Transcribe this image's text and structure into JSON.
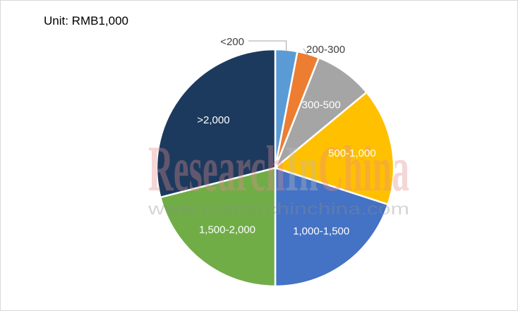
{
  "unit_label": "Unit: RMB1,000",
  "watermark": {
    "brand_parts": [
      "Research",
      "In",
      "China"
    ],
    "url": "www.researchinchina.com",
    "colors": [
      "#e38d8d",
      "#bdbdbd"
    ]
  },
  "chart_data": {
    "type": "pie",
    "start_angle_deg": 0,
    "direction": "clockwise",
    "slices": [
      {
        "label": "<200",
        "value": 3.0,
        "color": "#5b9bd5",
        "label_outside": true,
        "label_color": "#404040"
      },
      {
        "label": "200-300",
        "value": 3.0,
        "color": "#ed7d31",
        "label_outside": true,
        "label_color": "#404040"
      },
      {
        "label": "300-500",
        "value": 8.0,
        "color": "#a5a5a5",
        "label_outside": false,
        "label_color": "#ffffff"
      },
      {
        "label": "500-1,000",
        "value": 16.0,
        "color": "#ffc000",
        "label_outside": false,
        "label_color": "#ffffff"
      },
      {
        "label": "1,000-1,500",
        "value": 20.0,
        "color": "#4472c4",
        "label_outside": false,
        "label_color": "#ffffff"
      },
      {
        "label": "1,500-2,000",
        "value": 21.0,
        "color": "#70ad47",
        "label_outside": false,
        "label_color": "#ffffff"
      },
      {
        "label": ">2,000",
        "value": 29.0,
        "color": "#1c3a5e",
        "label_outside": false,
        "label_color": "#ffffff"
      }
    ]
  }
}
